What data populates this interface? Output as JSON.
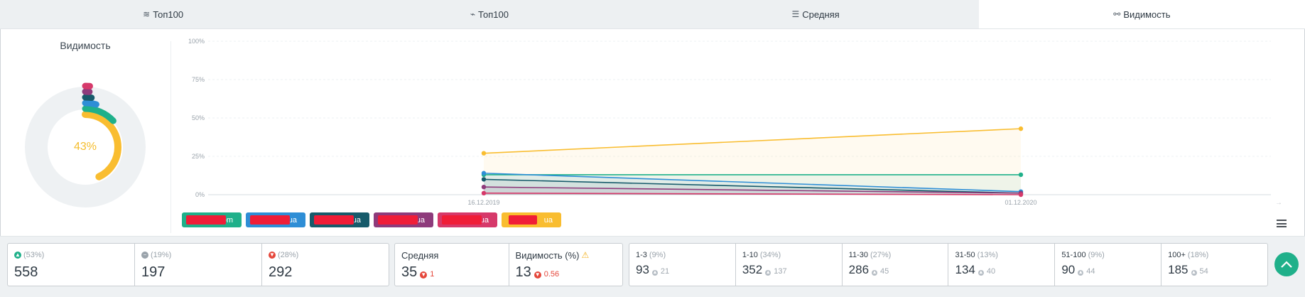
{
  "tabs": [
    {
      "icon": "layers-icon",
      "glyph": "≋",
      "label": "Топ100",
      "active": false
    },
    {
      "icon": "trend-icon",
      "glyph": "⌁",
      "label": "Топ100",
      "active": false
    },
    {
      "icon": "list-icon",
      "glyph": "☰",
      "label": "Средняя",
      "active": false
    },
    {
      "icon": "glasses-icon",
      "glyph": "⚯",
      "label": "Видимость",
      "active": true
    }
  ],
  "donut": {
    "title": "Видимость",
    "center_value": "43%",
    "series_percents": [
      43,
      13,
      4,
      2,
      1,
      0.5
    ],
    "series_colors": [
      "#f9bd30",
      "#1fb08a",
      "#2e8ed6",
      "#175b6b",
      "#8e3b7b",
      "#d6396a"
    ]
  },
  "chart_data": {
    "type": "area",
    "x": [
      "16.12.2019",
      "01.12.2020"
    ],
    "ylim": [
      0,
      100
    ],
    "y_ticks": [
      "0%",
      "25%",
      "50%",
      "75%",
      "100%"
    ],
    "series": [
      {
        "color": "#f9bd30",
        "values": [
          27,
          43
        ]
      },
      {
        "color": "#1fb08a",
        "values": [
          13,
          13
        ]
      },
      {
        "color": "#2e8ed6",
        "values": [
          14,
          2
        ]
      },
      {
        "color": "#175b6b",
        "values": [
          10,
          1
        ]
      },
      {
        "color": "#8e3b7b",
        "values": [
          5,
          1
        ]
      },
      {
        "color": "#d6396a",
        "values": [
          1,
          0
        ]
      }
    ]
  },
  "legend": [
    {
      "suffix": "com",
      "color": "#1fb08a"
    },
    {
      "suffix": "ua",
      "color": "#2e8ed6"
    },
    {
      "suffix": "ua",
      "color": "#175b6b"
    },
    {
      "suffix": "ua",
      "color": "#8e3b7b"
    },
    {
      "suffix": "ua",
      "color": "#d6396a"
    },
    {
      "suffix": "ua",
      "color": "#f9bd30"
    }
  ],
  "movement": {
    "up": {
      "pct": "(53%)",
      "value": "558"
    },
    "same": {
      "pct": "(19%)",
      "value": "197"
    },
    "down": {
      "pct": "(28%)",
      "value": "292"
    }
  },
  "averages": {
    "avg_label": "Средняя",
    "avg_value": "35",
    "avg_change": "1",
    "vis_label": "Видимость (%)",
    "vis_value": "13",
    "vis_change": "0.56"
  },
  "ranges": [
    {
      "label": "1-3",
      "pct": "(9%)",
      "value": "93",
      "change": "21"
    },
    {
      "label": "1-10",
      "pct": "(34%)",
      "value": "352",
      "change": "137"
    },
    {
      "label": "11-30",
      "pct": "(27%)",
      "value": "286",
      "change": "45"
    },
    {
      "label": "31-50",
      "pct": "(13%)",
      "value": "134",
      "change": "40"
    },
    {
      "label": "51-100",
      "pct": "(9%)",
      "value": "90",
      "change": "44"
    },
    {
      "label": "100+",
      "pct": "(18%)",
      "value": "185",
      "change": "54"
    }
  ]
}
